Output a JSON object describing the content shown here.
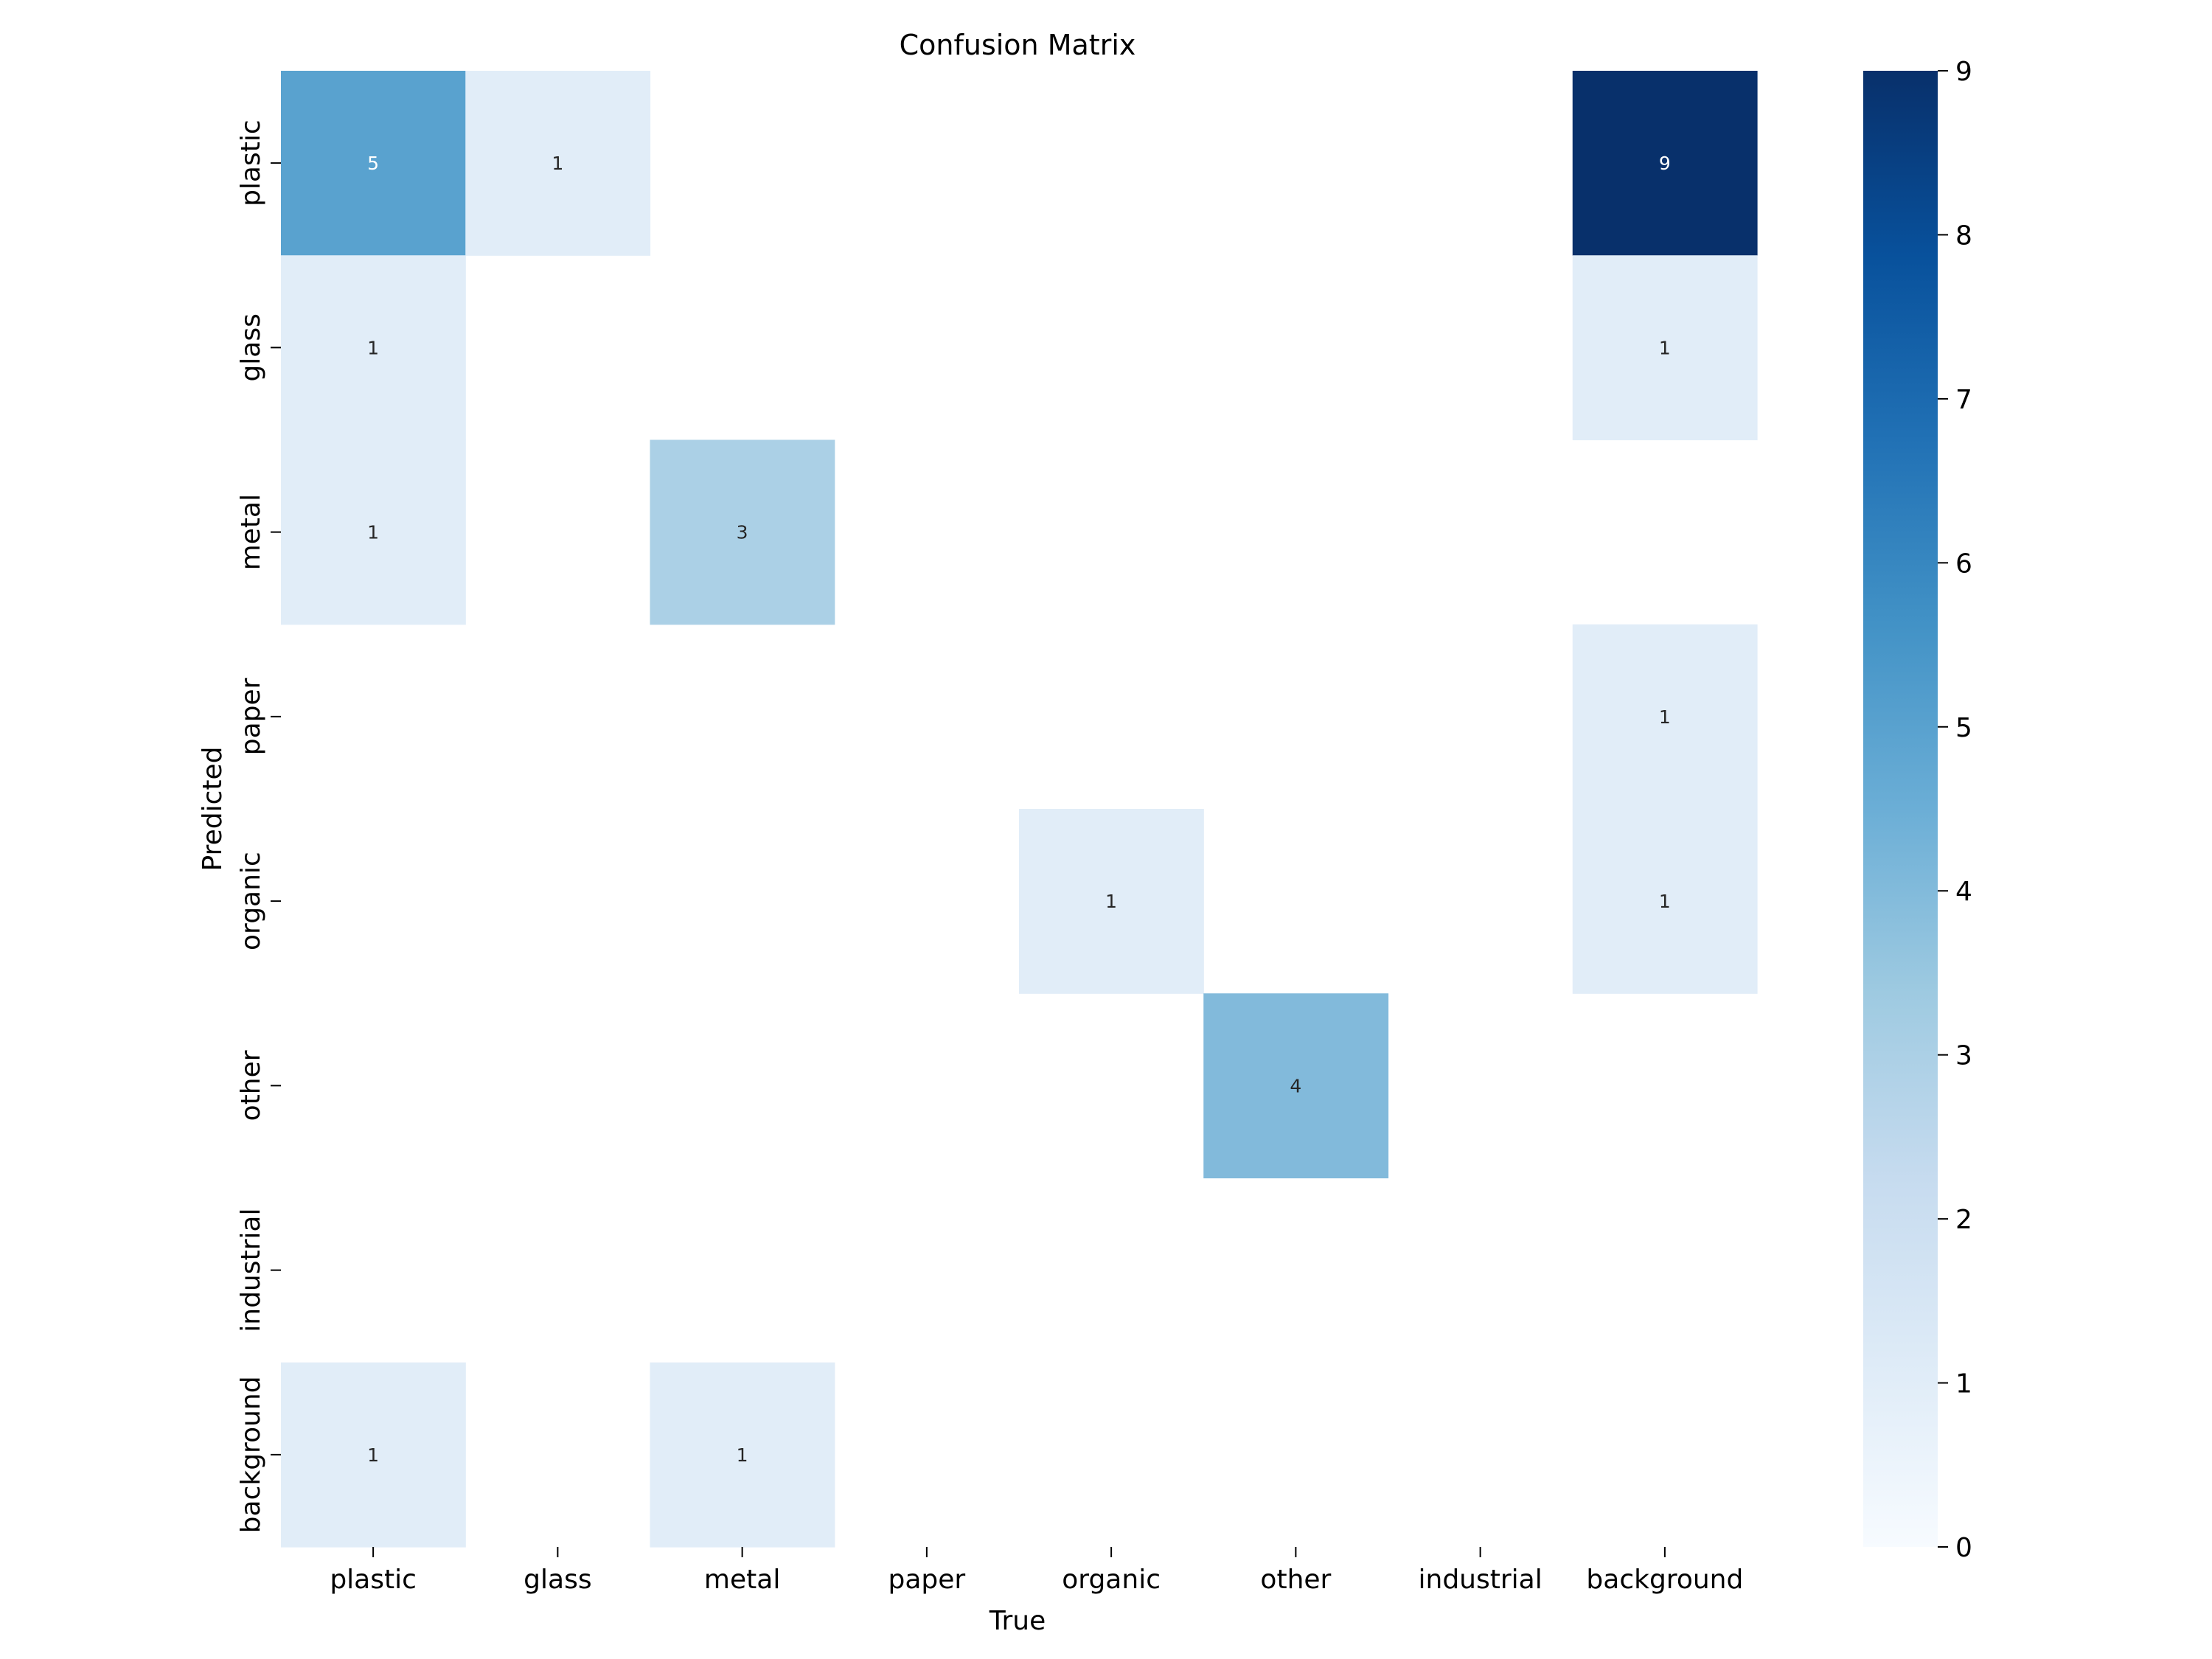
{
  "chart_data": {
    "type": "heatmap",
    "title": "Confusion Matrix",
    "xlabel": "True",
    "ylabel": "Predicted",
    "x_categories": [
      "plastic",
      "glass",
      "metal",
      "paper",
      "organic",
      "other",
      "industrial",
      "background"
    ],
    "y_categories": [
      "plastic",
      "glass",
      "metal",
      "paper",
      "organic",
      "other",
      "industrial",
      "background"
    ],
    "matrix": [
      [
        5,
        1,
        0,
        0,
        0,
        0,
        0,
        9
      ],
      [
        1,
        0,
        0,
        0,
        0,
        0,
        0,
        1
      ],
      [
        1,
        0,
        3,
        0,
        0,
        0,
        0,
        0
      ],
      [
        0,
        0,
        0,
        0,
        0,
        0,
        0,
        1
      ],
      [
        0,
        0,
        0,
        0,
        1,
        0,
        0,
        1
      ],
      [
        0,
        0,
        0,
        0,
        0,
        4,
        0,
        0
      ],
      [
        0,
        0,
        0,
        0,
        0,
        0,
        0,
        0
      ],
      [
        1,
        0,
        1,
        0,
        0,
        0,
        0,
        0
      ]
    ],
    "zero_cells_hidden": true,
    "colormap": "Blues",
    "vmin": 0,
    "vmax": 9,
    "colorbar_ticks": [
      0,
      1,
      2,
      3,
      4,
      5,
      6,
      7,
      8,
      9
    ]
  }
}
